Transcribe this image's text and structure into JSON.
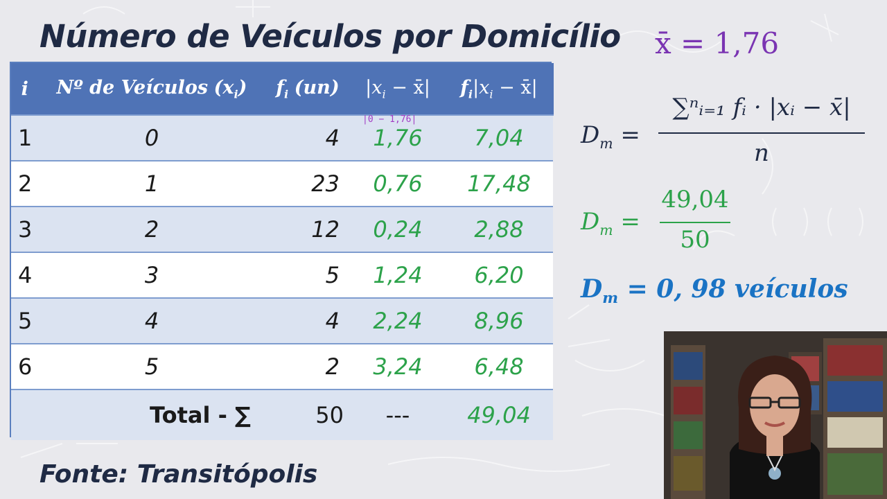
{
  "title": "Número de Veículos por Domicílio",
  "source": "Fonte: Transitópolis",
  "table": {
    "headers": {
      "i": "i",
      "veiculos": "Nº de Veículos",
      "xi": "(x",
      "xi_sub": "i",
      "xi_close": ")",
      "fi": "f",
      "fi_sub": "i",
      "fi_unit": "(un)",
      "abs_dev": "|x",
      "abs_dev_sub": "i",
      "abs_dev_rest": " − x̄|",
      "f_abs_dev": "f",
      "f_abs_dev_sub": "i",
      "f_abs_dev_mid": "|x",
      "f_abs_dev_sub2": "i",
      "f_abs_dev_rest": " − x̄|"
    },
    "rows": [
      {
        "i": "1",
        "x": "0",
        "f": "4",
        "d": "1,76",
        "fd": "7,04"
      },
      {
        "i": "2",
        "x": "1",
        "f": "23",
        "d": "0,76",
        "fd": "17,48"
      },
      {
        "i": "3",
        "x": "2",
        "f": "12",
        "d": "0,24",
        "fd": "2,88"
      },
      {
        "i": "4",
        "x": "3",
        "f": "5",
        "d": "1,24",
        "fd": "6,20"
      },
      {
        "i": "5",
        "x": "4",
        "f": "4",
        "d": "2,24",
        "fd": "8,96"
      },
      {
        "i": "6",
        "x": "5",
        "f": "2",
        "d": "3,24",
        "fd": "6,48"
      }
    ],
    "total": {
      "label": "Total - ∑",
      "f": "50",
      "d": "---",
      "fd": "49,04"
    },
    "note": "|0 − 1,76|"
  },
  "formulas": {
    "mean": "x̄ = 1,76",
    "dm_lhs": "D",
    "dm_sub": "m",
    "equals": " =",
    "f1_num": "∑ⁿᵢ₌₁ fᵢ · |xᵢ − x̄|",
    "f1_den": "n",
    "f2_num": "49,04",
    "f2_den": "50",
    "result_value": " = 0, 98 veículos"
  },
  "colors": {
    "header_bg": "#4f73b6",
    "row_band": "#dbe3f1",
    "green": "#2ca24a",
    "purple": "#7a34b2",
    "blue": "#1a73c4",
    "title": "#1f2a44"
  }
}
